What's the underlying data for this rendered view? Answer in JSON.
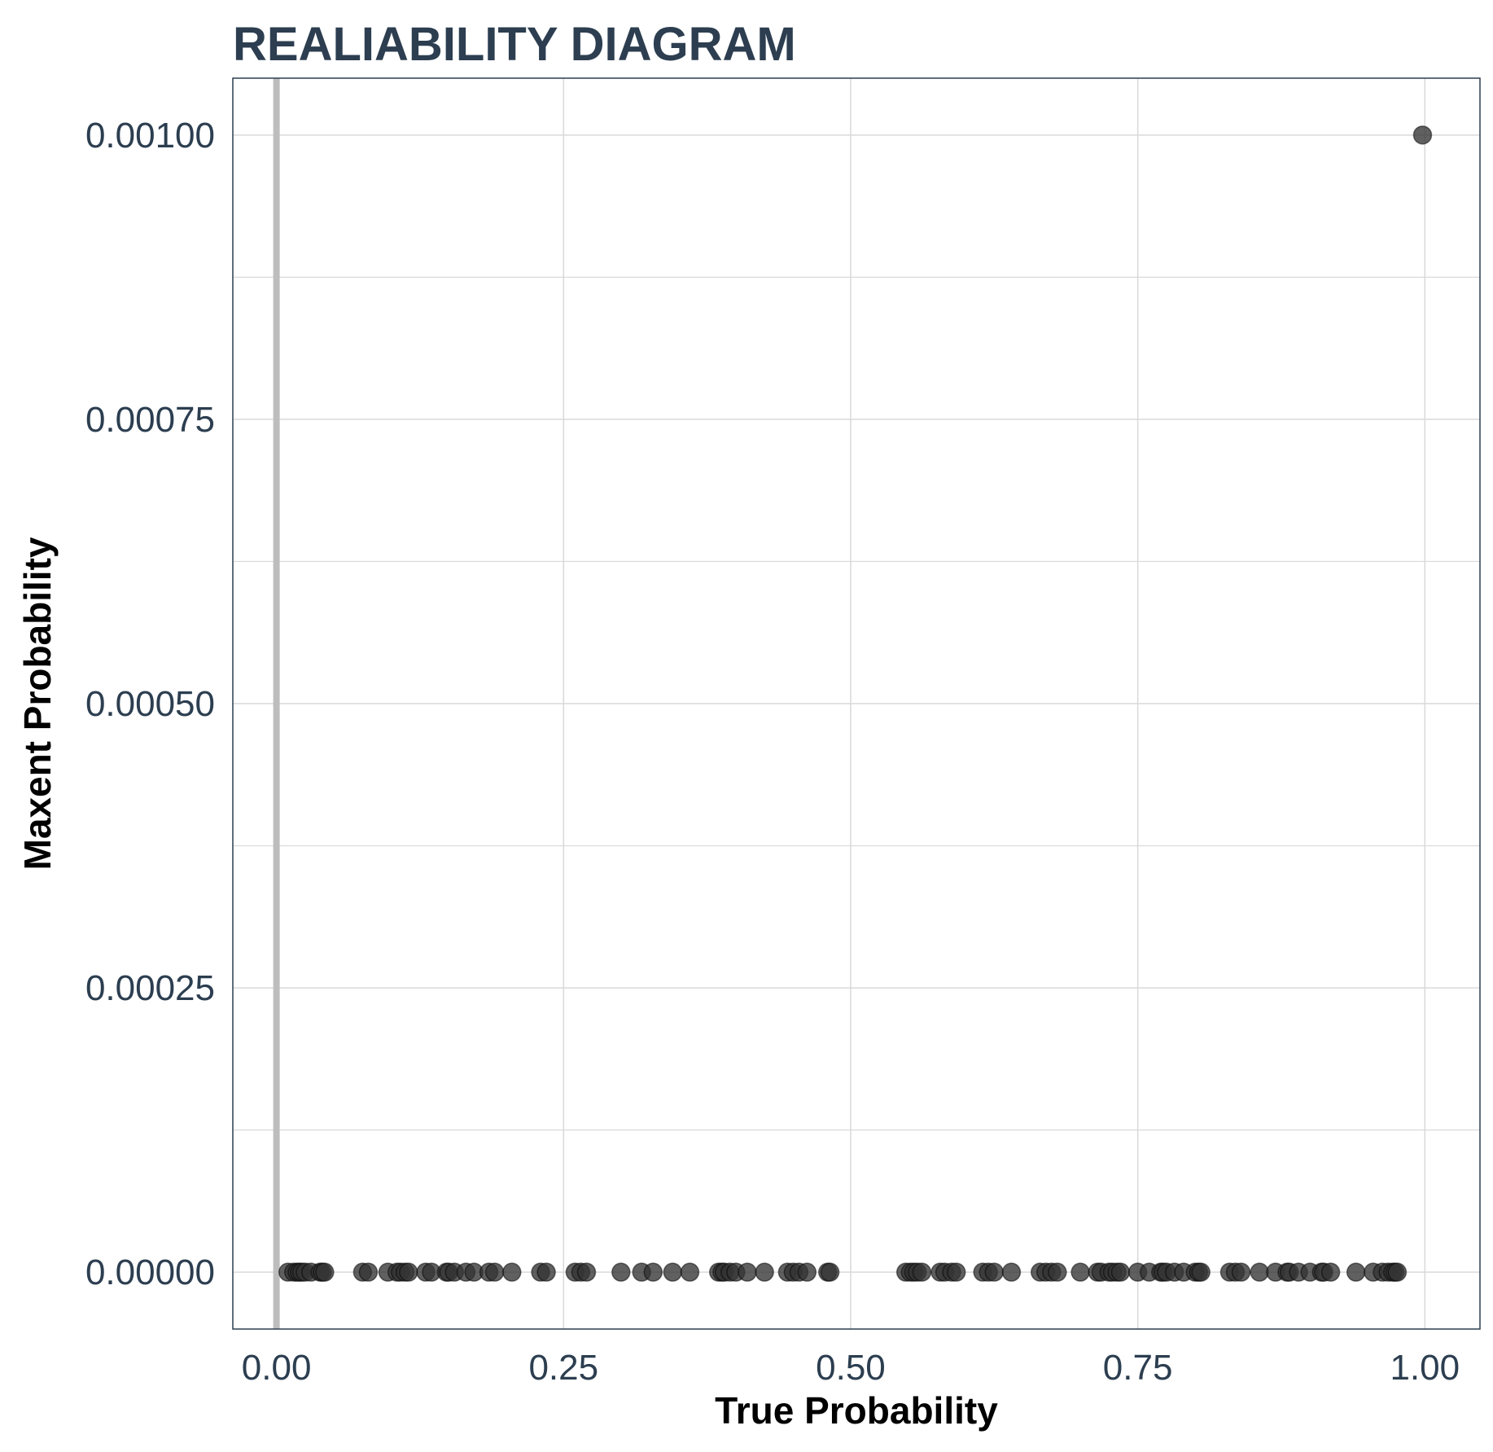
{
  "chart_data": {
    "type": "scatter",
    "title": "REALIABILITY DIAGRAM",
    "xlabel": "True Probability",
    "ylabel": "Maxent Probability",
    "xlim": [
      -0.038,
      1.048
    ],
    "ylim": [
      -5e-05,
      0.00105
    ],
    "x_ticks": [
      0.0,
      0.25,
      0.5,
      0.75,
      1.0
    ],
    "x_tick_labels": [
      "0.00",
      "0.25",
      "0.50",
      "0.75",
      "1.00"
    ],
    "y_ticks": [
      0.0,
      0.00025,
      0.0005,
      0.00075,
      0.001
    ],
    "y_tick_labels": [
      "0.00000",
      "0.00025",
      "0.00050",
      "0.00075",
      "0.00100"
    ],
    "y_minor_ticks": [
      0.000125,
      0.000375,
      0.000625,
      0.000875
    ],
    "grid": true,
    "reference_line": {
      "x": 0.0,
      "color": "#bdbdbd"
    },
    "colors": {
      "title": "#2c3e50",
      "tick_labels": "#2c3e50",
      "axis_titles": "#000000",
      "points": "#333333",
      "grid": "#d9d9d9",
      "panel_border": "#2c3e50"
    },
    "series": [
      {
        "x": [
          0.01,
          0.015,
          0.018,
          0.02,
          0.022,
          0.025,
          0.03,
          0.038,
          0.04,
          0.042,
          0.075,
          0.08,
          0.097,
          0.105,
          0.108,
          0.112,
          0.115,
          0.13,
          0.135,
          0.148,
          0.15,
          0.155,
          0.165,
          0.172,
          0.185,
          0.19,
          0.205,
          0.23,
          0.235,
          0.26,
          0.265,
          0.27,
          0.3,
          0.318,
          0.328,
          0.345,
          0.36,
          0.385,
          0.388,
          0.39,
          0.395,
          0.4,
          0.41,
          0.425,
          0.445,
          0.45,
          0.455,
          0.462,
          0.48,
          0.482,
          0.548,
          0.552,
          0.555,
          0.558,
          0.562,
          0.578,
          0.582,
          0.588,
          0.592,
          0.615,
          0.62,
          0.625,
          0.64,
          0.665,
          0.67,
          0.675,
          0.68,
          0.7,
          0.715,
          0.718,
          0.725,
          0.728,
          0.732,
          0.735,
          0.75,
          0.76,
          0.77,
          0.772,
          0.775,
          0.782,
          0.79,
          0.8,
          0.803,
          0.805,
          0.83,
          0.835,
          0.84,
          0.856,
          0.87,
          0.88,
          0.882,
          0.89,
          0.9,
          0.91,
          0.912,
          0.918,
          0.94,
          0.955,
          0.963,
          0.968,
          0.972,
          0.974,
          0.976,
          0.998
        ],
        "y": [
          0,
          0,
          0,
          0,
          0,
          0,
          0,
          0,
          0,
          0,
          0,
          0,
          0,
          0,
          0,
          0,
          0,
          0,
          0,
          0,
          0,
          0,
          0,
          0,
          0,
          0,
          0,
          0,
          0,
          0,
          0,
          0,
          0,
          0,
          0,
          0,
          0,
          0,
          0,
          0,
          0,
          0,
          0,
          0,
          0,
          0,
          0,
          0,
          0,
          0,
          0,
          0,
          0,
          0,
          0,
          0,
          0,
          0,
          0,
          0,
          0,
          0,
          0,
          0,
          0,
          0,
          0,
          0,
          0,
          0,
          0,
          0,
          0,
          0,
          0,
          0,
          0,
          0,
          0,
          0,
          0,
          0,
          0,
          0,
          0,
          0,
          0,
          0,
          0,
          0,
          0,
          0,
          0,
          0,
          0,
          0,
          0,
          0,
          0,
          0,
          0,
          0,
          0,
          0.001
        ]
      }
    ]
  }
}
